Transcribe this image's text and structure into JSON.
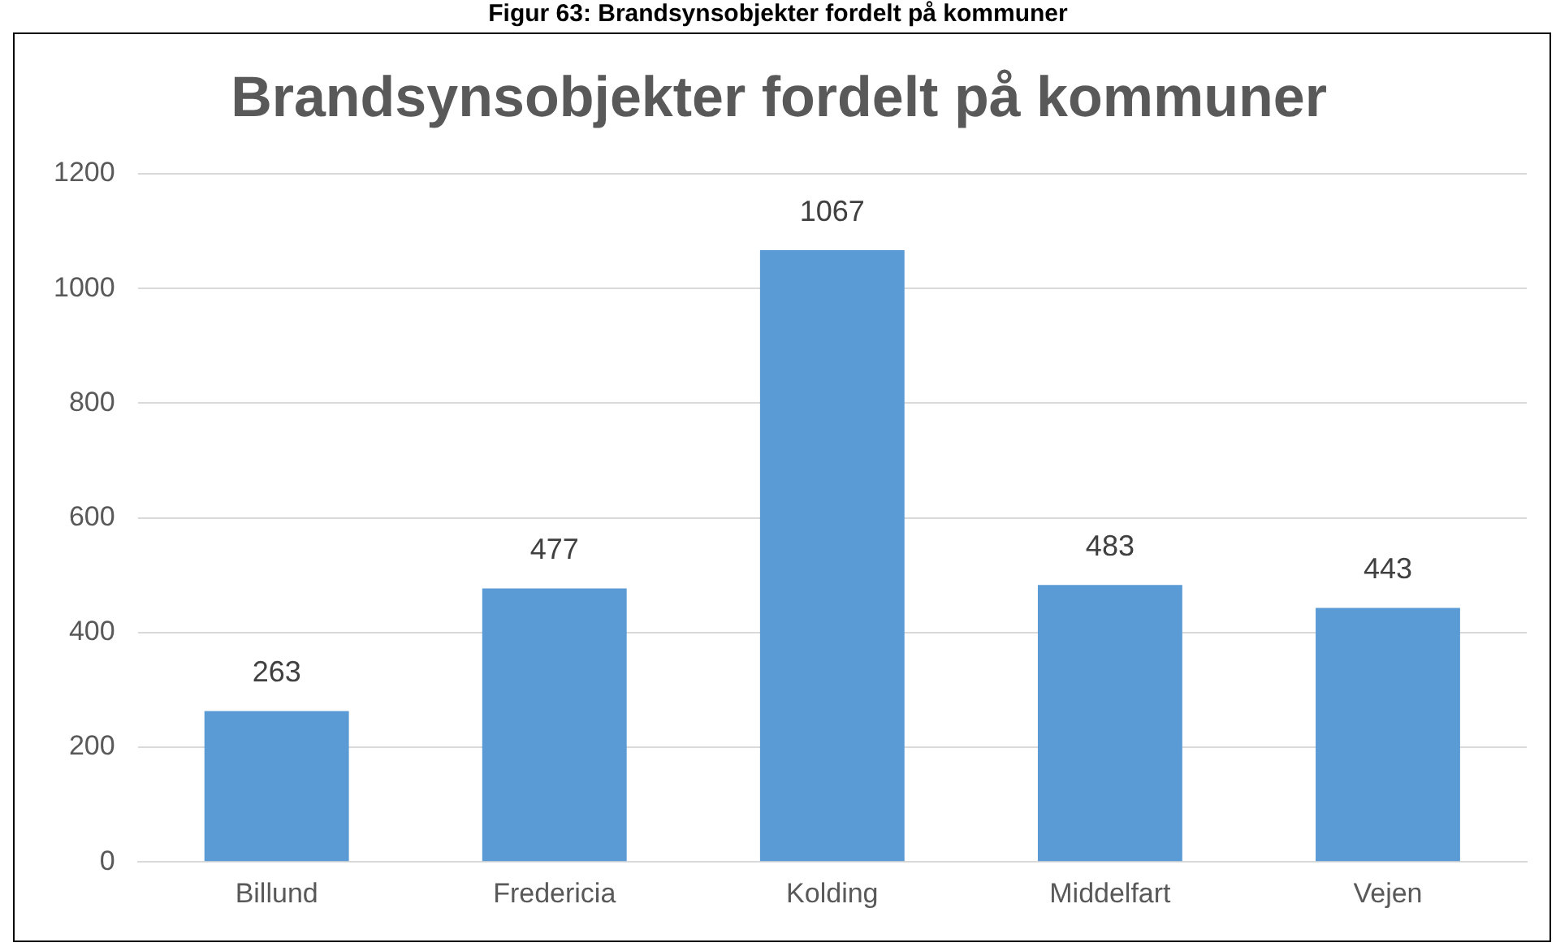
{
  "chart_data": {
    "type": "bar",
    "title": "Brandsynsobjekter fordelt på kommuner",
    "annotations": [
      "Figur 63: Brandsynsobjekter fordelt på kommuner"
    ],
    "categories": [
      "Billund",
      "Fredericia",
      "Kolding",
      "Middelfart",
      "Vejen"
    ],
    "values": [
      263,
      477,
      1067,
      483,
      443
    ],
    "color": "#5b9bd5",
    "ylim": [
      0,
      1200
    ],
    "yticks": [
      0,
      200,
      400,
      600,
      800,
      1000,
      1200
    ],
    "grid": "y",
    "data_labels": true
  }
}
